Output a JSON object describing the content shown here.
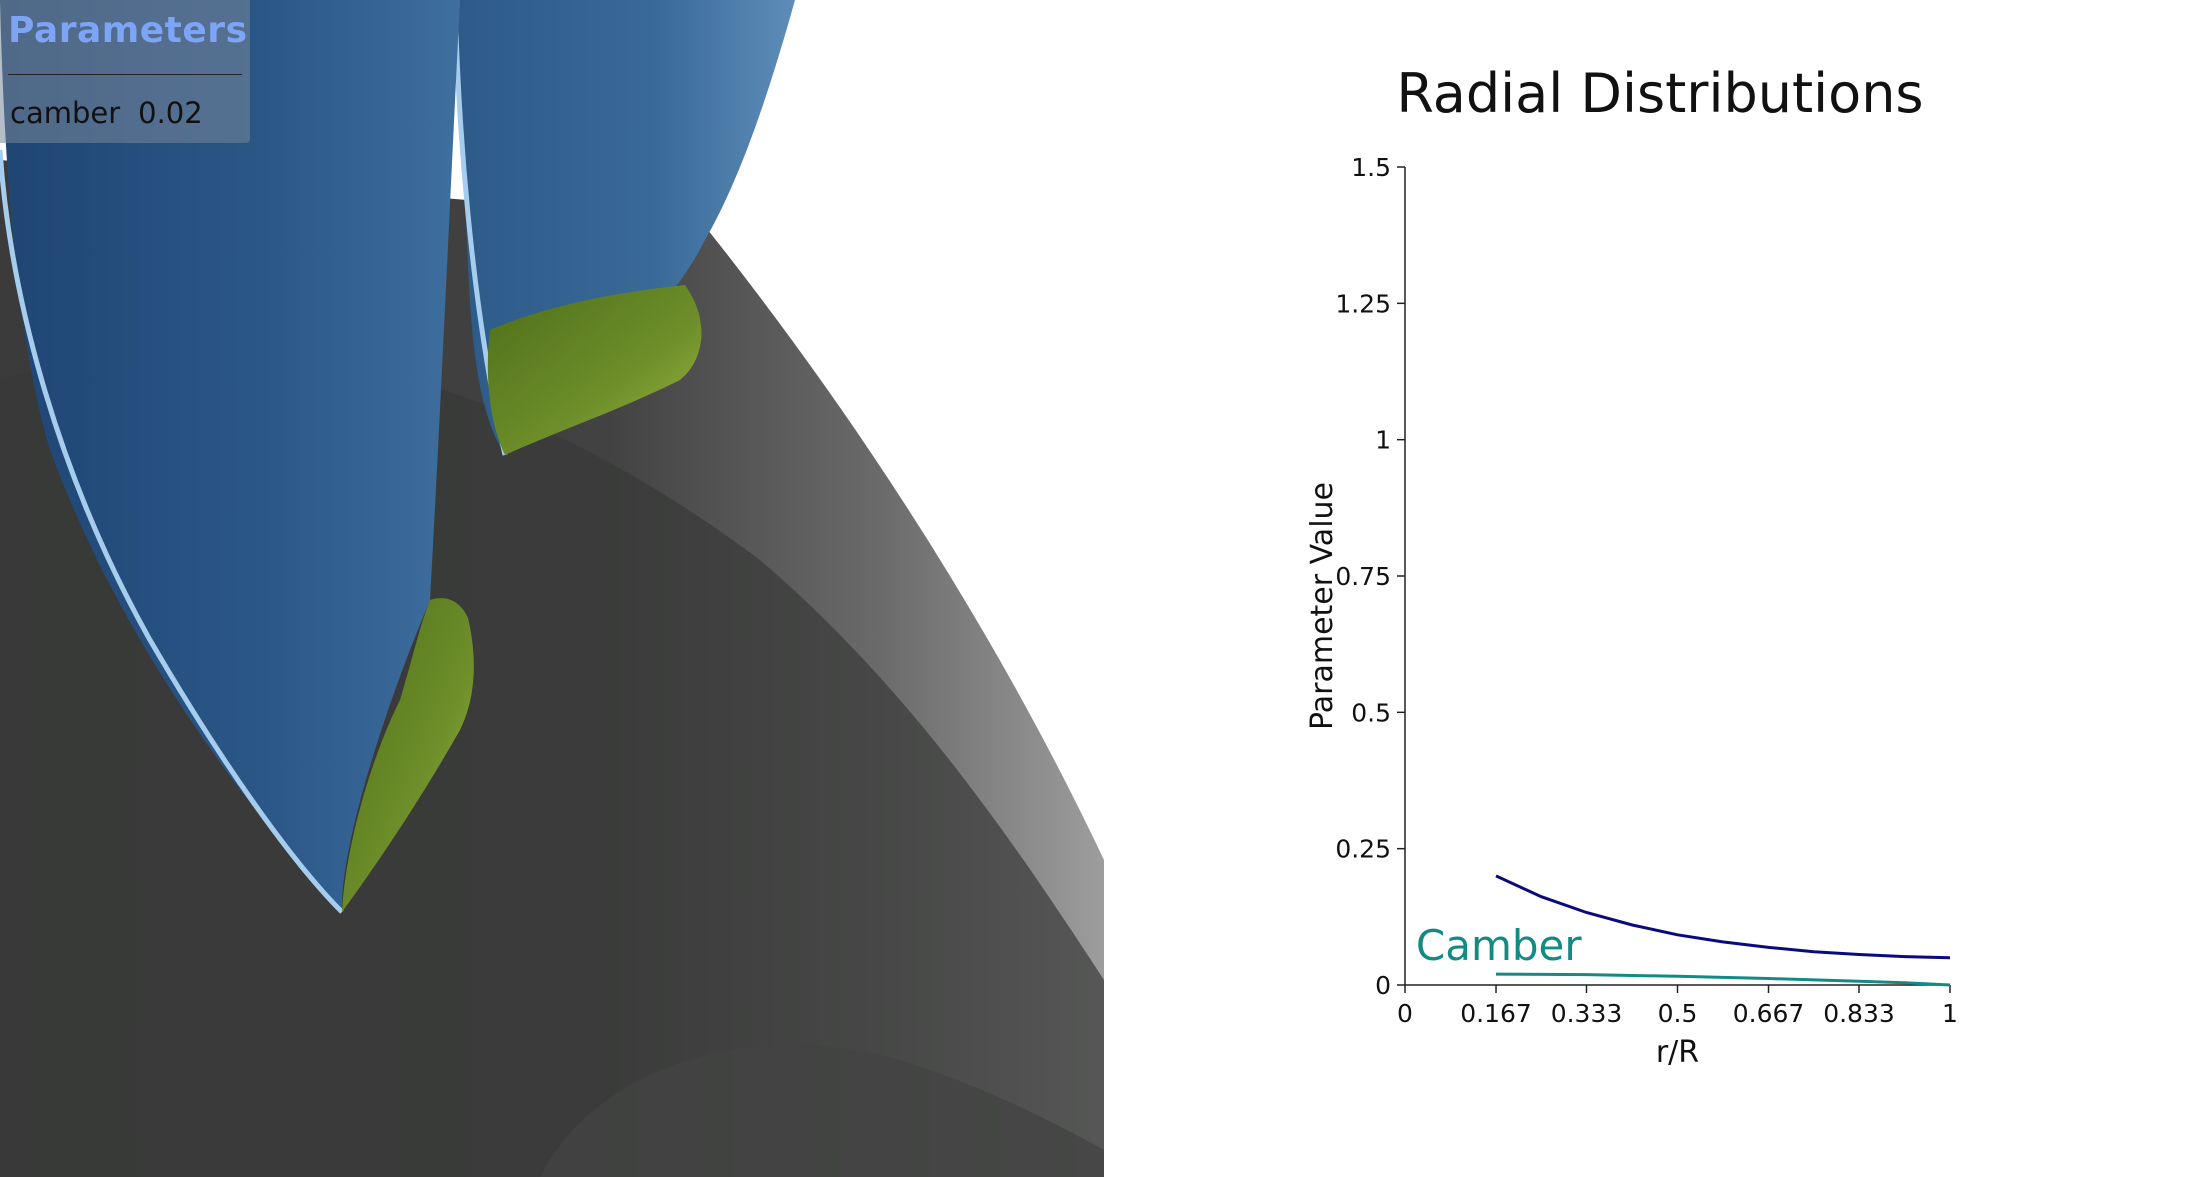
{
  "panel": {
    "title": "Parameters",
    "param_name": "camber",
    "param_value": "0.02"
  },
  "colors": {
    "panel_title": "#7da4f5",
    "blade_blue": "#2a5588",
    "blade_edge": "#9cc6ea",
    "tip_green": "#6e8f2a",
    "hub_gray": "#3e3f3e",
    "series_navy": "#0a0a80",
    "series_teal": "#138a84"
  },
  "chart_data": {
    "type": "line",
    "title": "Radial Distributions",
    "xlabel": "r/R",
    "ylabel": "Parameter Value",
    "xlim": [
      0,
      1
    ],
    "ylim": [
      0,
      1.5
    ],
    "xticks": [
      0,
      0.167,
      0.333,
      0.5,
      0.667,
      0.833,
      1
    ],
    "xtick_labels": [
      "0",
      "0.167",
      "0.333",
      "0.5",
      "0.667",
      "0.833",
      "1"
    ],
    "yticks": [
      0,
      0.25,
      0.5,
      0.75,
      1,
      1.25,
      1.5
    ],
    "ytick_labels": [
      "0",
      "0.25",
      "0.5",
      "0.75",
      "1",
      "1.25",
      "1.5"
    ],
    "grid": false,
    "series": [
      {
        "color": "#0a0a80",
        "x": [
          0.167,
          0.25,
          0.333,
          0.417,
          0.5,
          0.583,
          0.667,
          0.75,
          0.833,
          0.917,
          1.0
        ],
        "y": [
          0.2,
          0.162,
          0.133,
          0.11,
          0.092,
          0.079,
          0.069,
          0.061,
          0.056,
          0.052,
          0.05
        ]
      },
      {
        "name": "Camber",
        "color": "#138a84",
        "x": [
          0.167,
          0.333,
          0.5,
          0.667,
          0.833,
          0.917,
          1.0
        ],
        "y": [
          0.02,
          0.019,
          0.016,
          0.012,
          0.007,
          0.004,
          0.0
        ]
      }
    ]
  }
}
